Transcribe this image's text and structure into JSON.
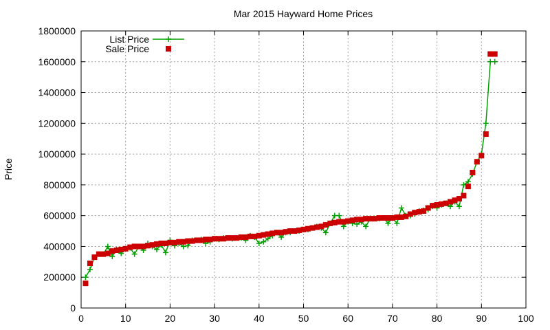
{
  "chart_data": {
    "type": "line",
    "title": "Mar 2015 Hayward Home Prices",
    "ylabel": "Price",
    "xlabel": "",
    "xlim": [
      0,
      100
    ],
    "ylim": [
      0,
      1800000
    ],
    "xticks": [
      0,
      10,
      20,
      30,
      40,
      50,
      60,
      70,
      80,
      90,
      100
    ],
    "yticks": [
      0,
      200000,
      400000,
      600000,
      800000,
      1000000,
      1200000,
      1400000,
      1600000,
      1800000
    ],
    "grid": true,
    "legend_position": "top-left",
    "colors": {
      "list": "#00a000",
      "sale": "#cc0000",
      "grid": "#a0a0a0"
    },
    "series": [
      {
        "name": "List Price",
        "style": "line+cross",
        "x": [
          1,
          2,
          3,
          4,
          5,
          6,
          7,
          8,
          9,
          10,
          11,
          12,
          13,
          14,
          15,
          16,
          17,
          18,
          19,
          20,
          21,
          22,
          23,
          24,
          25,
          26,
          27,
          28,
          29,
          30,
          31,
          32,
          33,
          34,
          35,
          36,
          37,
          38,
          39,
          40,
          41,
          42,
          43,
          44,
          45,
          46,
          47,
          48,
          49,
          50,
          51,
          52,
          53,
          54,
          55,
          56,
          57,
          58,
          59,
          60,
          61,
          62,
          63,
          64,
          65,
          66,
          67,
          68,
          69,
          70,
          71,
          72,
          73,
          74,
          75,
          76,
          77,
          78,
          79,
          80,
          81,
          82,
          83,
          84,
          85,
          86,
          87,
          88,
          89,
          90,
          91,
          92,
          93
        ],
        "values": [
          200000,
          250000,
          330000,
          350000,
          350000,
          400000,
          335000,
          380000,
          355000,
          385000,
          390000,
          350000,
          400000,
          375000,
          420000,
          400000,
          380000,
          410000,
          360000,
          440000,
          405000,
          420000,
          400000,
          405000,
          440000,
          440000,
          445000,
          420000,
          430000,
          450000,
          445000,
          455000,
          455000,
          450000,
          455000,
          455000,
          440000,
          470000,
          460000,
          420000,
          430000,
          450000,
          470000,
          490000,
          460000,
          490000,
          490000,
          500000,
          500000,
          510000,
          510000,
          520000,
          530000,
          520000,
          490000,
          550000,
          600000,
          600000,
          530000,
          560000,
          550000,
          545000,
          560000,
          530000,
          580000,
          580000,
          580000,
          585000,
          550000,
          585000,
          550000,
          650000,
          600000,
          600000,
          610000,
          630000,
          635000,
          640000,
          660000,
          650000,
          670000,
          680000,
          660000,
          690000,
          660000,
          800000,
          820000,
          870000,
          950000,
          1000000,
          1200000,
          1600000,
          1600000
        ]
      },
      {
        "name": "Sale Price",
        "style": "squares",
        "x": [
          1,
          2,
          3,
          4,
          5,
          6,
          7,
          8,
          9,
          10,
          11,
          12,
          13,
          14,
          15,
          16,
          17,
          18,
          19,
          20,
          21,
          22,
          23,
          24,
          25,
          26,
          27,
          28,
          29,
          30,
          31,
          32,
          33,
          34,
          35,
          36,
          37,
          38,
          39,
          40,
          41,
          42,
          43,
          44,
          45,
          46,
          47,
          48,
          49,
          50,
          51,
          52,
          53,
          54,
          55,
          56,
          57,
          58,
          59,
          60,
          61,
          62,
          63,
          64,
          65,
          66,
          67,
          68,
          69,
          70,
          71,
          72,
          73,
          74,
          75,
          76,
          77,
          78,
          79,
          80,
          81,
          82,
          83,
          84,
          85,
          86,
          87,
          88,
          89,
          90,
          91,
          92,
          93
        ],
        "values": [
          160000,
          290000,
          330000,
          350000,
          350000,
          355000,
          370000,
          375000,
          380000,
          385000,
          395000,
          400000,
          400000,
          400000,
          405000,
          410000,
          415000,
          420000,
          420000,
          425000,
          425000,
          430000,
          430000,
          435000,
          435000,
          440000,
          440000,
          445000,
          445000,
          450000,
          450000,
          450000,
          455000,
          455000,
          455000,
          460000,
          460000,
          465000,
          465000,
          470000,
          475000,
          480000,
          485000,
          490000,
          490000,
          495000,
          500000,
          500000,
          505000,
          510000,
          515000,
          520000,
          525000,
          530000,
          540000,
          550000,
          555000,
          560000,
          560000,
          565000,
          570000,
          575000,
          575000,
          580000,
          580000,
          580000,
          585000,
          585000,
          585000,
          585000,
          590000,
          590000,
          595000,
          610000,
          620000,
          625000,
          630000,
          650000,
          665000,
          670000,
          675000,
          680000,
          690000,
          700000,
          710000,
          730000,
          790000,
          880000,
          950000,
          990000,
          1130000,
          1650000,
          1650000
        ]
      }
    ]
  }
}
